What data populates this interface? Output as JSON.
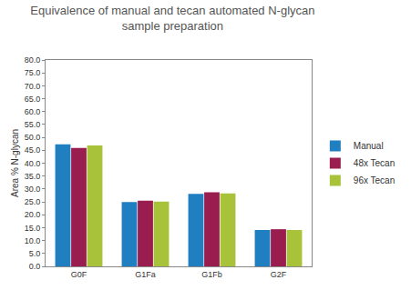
{
  "chart_data": {
    "type": "bar",
    "title": "Equivalence of manual and tecan automated N-glycan\nsample preparation",
    "y_label": "Area % N-glycan",
    "categories": [
      "G0F",
      "G1Fa",
      "G1Fb",
      "G2F"
    ],
    "series": [
      {
        "name": "Manual",
        "color": "#1f7fc0",
        "values": [
          47.3,
          24.9,
          28.1,
          14.1
        ]
      },
      {
        "name": "48x Tecan",
        "color": "#9a1d4f",
        "values": [
          45.9,
          25.5,
          28.7,
          14.4
        ]
      },
      {
        "name": "96x Tecan",
        "color": "#a8c23a",
        "values": [
          46.9,
          25.1,
          28.3,
          14.1
        ]
      }
    ],
    "ylim": [
      0,
      80
    ],
    "yticks": [
      {
        "value": 0,
        "label": "0.0"
      },
      {
        "value": 5,
        "label": "5.0"
      },
      {
        "value": 10,
        "label": "10.0"
      },
      {
        "value": 15,
        "label": "15.0"
      },
      {
        "value": 20,
        "label": "20.0"
      },
      {
        "value": 25,
        "label": "25.0"
      },
      {
        "value": 30,
        "label": "30.0"
      },
      {
        "value": 35,
        "label": "35.0"
      },
      {
        "value": 40,
        "label": "40.0"
      },
      {
        "value": 45,
        "label": "45.0"
      },
      {
        "value": 50,
        "label": "50.0"
      },
      {
        "value": 55,
        "label": "55.0"
      },
      {
        "value": 60,
        "label": "60.0"
      },
      {
        "value": 65,
        "label": "65.0"
      },
      {
        "value": 70,
        "label": "70.0"
      },
      {
        "value": 75,
        "label": "75.0"
      },
      {
        "value": 80,
        "label": "80.0"
      }
    ],
    "grid": false,
    "legend": "right"
  }
}
